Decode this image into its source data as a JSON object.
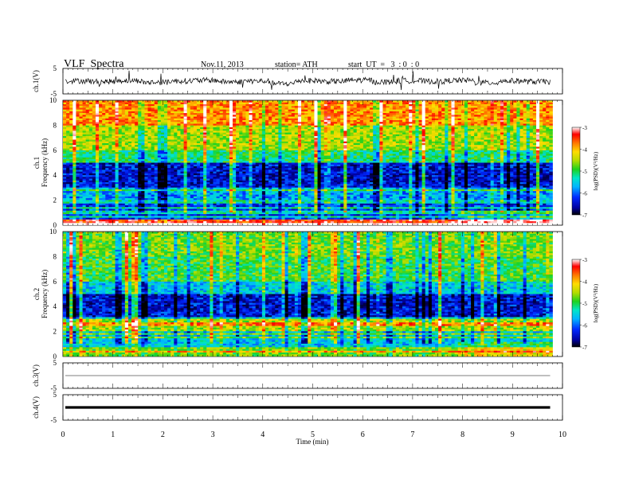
{
  "header": {
    "title": "VLF  Spectra",
    "date": "Nov.11, 2013",
    "station": "station= ATH",
    "start": "start  UT  =   3  : 0  : 0"
  },
  "chart_data": [
    {
      "type": "line",
      "panel": "ch1_waveform",
      "ylabel": "ch.1(V)",
      "yticks": [
        "5",
        "-5"
      ],
      "ylim": [
        -5,
        5
      ],
      "xlim": [
        0,
        10
      ],
      "series": [
        {
          "values_note": "",
          "values": [
            0.3,
            -0.4,
            0.6,
            -1.2,
            0.2,
            0.8,
            -0.6,
            0.1,
            -2.4,
            0.5,
            -0.3,
            1.0,
            -0.8,
            0.4,
            -0.2,
            0.7,
            -1.5,
            0.3,
            -0.5,
            0.9
          ]
        }
      ]
    },
    {
      "type": "heatmap",
      "panel": "ch1_spectrogram",
      "ylabel_lines": [
        "ch.1",
        "Frequency  (kHz)"
      ],
      "yticks": [
        "0",
        "2",
        "4",
        "6",
        "8",
        "10"
      ],
      "ylim": [
        0,
        10
      ],
      "xlim": [
        0,
        10
      ],
      "data_end_min": 9.8,
      "colorbar": {
        "label": "log(PSD)(V²/Hz)",
        "ticks": [
          "-3",
          "-4",
          "-5",
          "-6",
          "-7"
        ],
        "range": [
          -7,
          -3
        ]
      },
      "band_levels_by_freq_kHz": {
        "0-0.5": -3.5,
        "0.5-2": -6.2,
        "2-3": -5.8,
        "3-5": -6.4,
        "5-6": -5.2,
        "6-8": -4.6,
        "8-10": -3.9
      }
    },
    {
      "type": "heatmap",
      "panel": "ch2_spectrogram",
      "ylabel_lines": [
        "ch.2",
        "Frequency  (kHz)"
      ],
      "yticks": [
        "0",
        "2",
        "4",
        "6",
        "8",
        "10"
      ],
      "ylim": [
        0,
        10
      ],
      "xlim": [
        0,
        10
      ],
      "data_end_min": 9.8,
      "colorbar": {
        "label": "log(PSD)(V²/Hz)",
        "ticks": [
          "-3",
          "-4",
          "-5",
          "-6",
          "-7"
        ],
        "range": [
          -7,
          -3
        ]
      },
      "band_levels_by_freq_kHz": {
        "0-0.5": -4.8,
        "0.5-2": -5.6,
        "2-3": -4.6,
        "3-5": -6.4,
        "5-6": -5.6,
        "6-8": -5.0,
        "8-10": -4.8
      }
    },
    {
      "type": "line",
      "panel": "ch3_waveform",
      "ylabel": "ch.3(V)",
      "yticks": [
        "5",
        "-5"
      ],
      "ylim": [
        -5,
        5
      ],
      "xlim": [
        0,
        10
      ],
      "series": [
        {
          "values": [
            0,
            0,
            0,
            0,
            0
          ]
        }
      ]
    },
    {
      "type": "line",
      "panel": "ch4_waveform",
      "ylabel": "ch.4(V)",
      "yticks": [
        "5",
        "-5"
      ],
      "ylim": [
        -5,
        5
      ],
      "xlim": [
        0,
        10
      ],
      "series": [
        {
          "values": [
            0,
            0,
            0,
            0,
            0
          ]
        }
      ]
    }
  ],
  "xaxis": {
    "label": "Time  (min)",
    "ticks": [
      "0",
      "1",
      "2",
      "3",
      "4",
      "5",
      "6",
      "7",
      "8",
      "9",
      "10"
    ],
    "range": [
      0,
      10
    ]
  },
  "colors": {
    "scale": [
      "#000000",
      "#0000a0",
      "#0028ff",
      "#00b4ff",
      "#00e6c8",
      "#1ed21e",
      "#b4dc00",
      "#ffdc00",
      "#ff7800",
      "#ff0000",
      "#ffffff"
    ]
  }
}
